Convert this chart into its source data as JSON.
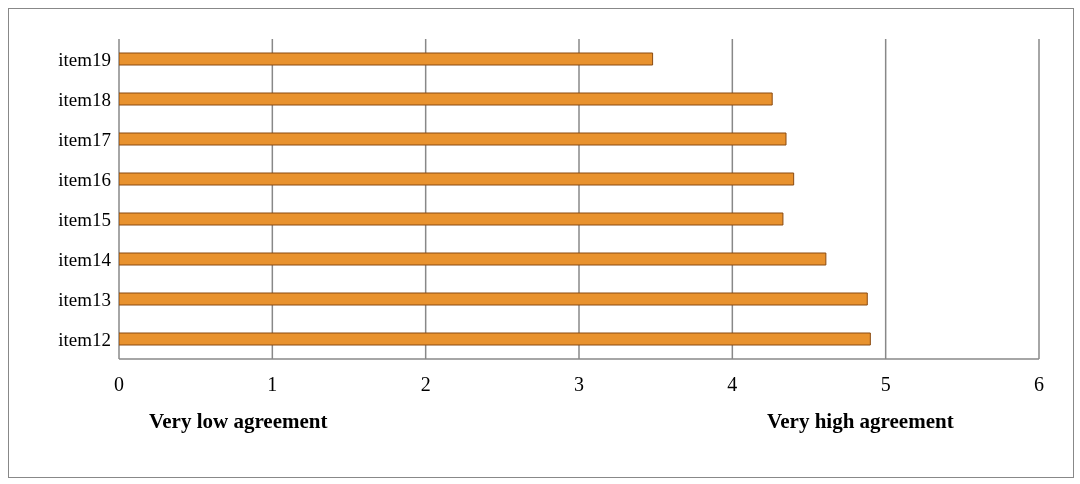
{
  "chart_data": {
    "type": "bar",
    "orientation": "horizontal",
    "categories": [
      "item19",
      "item18",
      "item17",
      "item16",
      "item15",
      "item14",
      "item13",
      "item12"
    ],
    "values": [
      3.48,
      4.26,
      4.35,
      4.4,
      4.33,
      4.61,
      4.88,
      4.9
    ],
    "color": "#e8922e",
    "xlim": [
      0,
      6
    ],
    "xticks": [
      0,
      1,
      2,
      3,
      4,
      5,
      6
    ],
    "grid": "x",
    "annotations": [
      "Very low agreement",
      "Very high agreement"
    ]
  }
}
